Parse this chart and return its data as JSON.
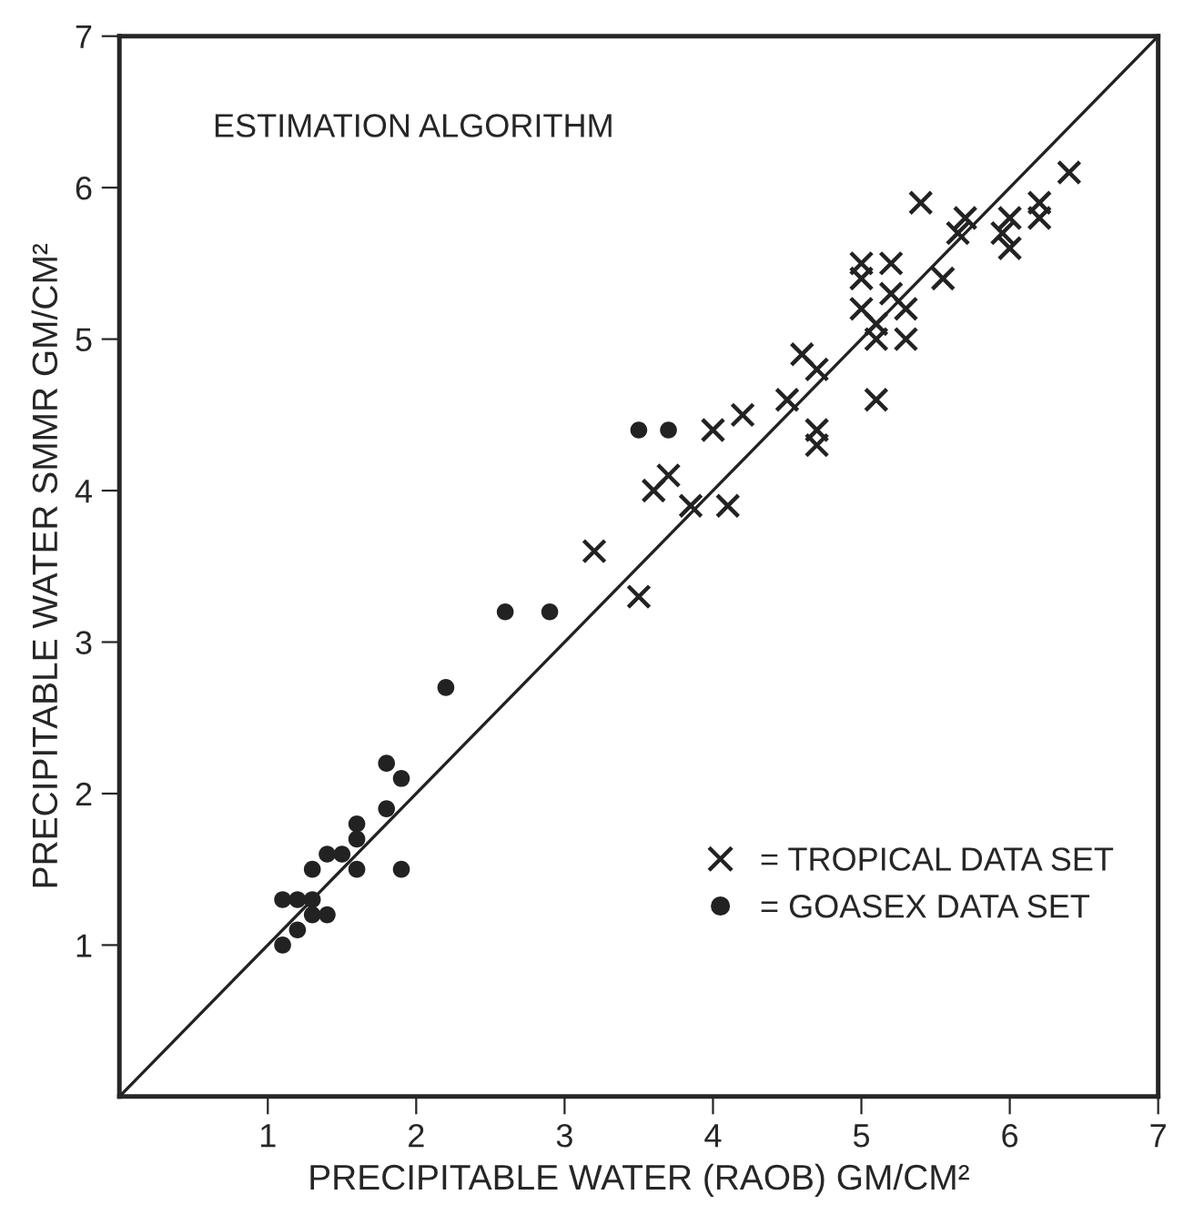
{
  "chart_data": {
    "type": "scatter",
    "xlabel": "PRECIPITABLE WATER (RAOB) GM/CM²",
    "ylabel": "PRECIPITABLE WATER SMMR GM/CM²",
    "annotations": [
      "ESTIMATION ALGORITHM"
    ],
    "xlim": [
      0,
      7
    ],
    "ylim": [
      0,
      7
    ],
    "xticks": [
      1,
      2,
      3,
      4,
      5,
      6,
      7
    ],
    "yticks": [
      1,
      2,
      3,
      4,
      5,
      6,
      7
    ],
    "grid": false,
    "legend": "bottom right",
    "series": [
      {
        "name": "= TROPICAL DATA SET",
        "marker": "cross",
        "color": "#222222",
        "x": [
          3.5,
          3.2,
          3.6,
          3.7,
          3.85,
          4.1,
          4.0,
          4.2,
          4.5,
          4.6,
          4.7,
          4.7,
          4.7,
          5.1,
          5.0,
          5.0,
          5.0,
          5.1,
          5.1,
          5.2,
          5.2,
          5.3,
          5.3,
          5.4,
          5.55,
          5.65,
          5.7,
          5.95,
          6.0,
          6.0,
          6.2,
          6.2,
          6.4
        ],
        "values": [
          3.3,
          3.6,
          4.0,
          4.1,
          3.9,
          3.9,
          4.4,
          4.5,
          4.6,
          4.9,
          4.8,
          4.4,
          4.3,
          4.6,
          5.5,
          5.4,
          5.2,
          5.1,
          5.0,
          5.5,
          5.3,
          5.2,
          5.0,
          5.9,
          5.4,
          5.7,
          5.8,
          5.7,
          5.6,
          5.8,
          5.8,
          5.9,
          6.1
        ]
      },
      {
        "name": "= GOASEX DATA SET",
        "marker": "circle",
        "color": "#222222",
        "x": [
          1.1,
          1.2,
          1.3,
          1.4,
          1.1,
          1.2,
          1.3,
          1.3,
          1.4,
          1.5,
          1.6,
          1.6,
          1.6,
          1.8,
          1.8,
          1.9,
          1.9,
          2.2,
          2.6,
          2.9,
          3.5,
          3.7
        ],
        "values": [
          1.0,
          1.1,
          1.2,
          1.2,
          1.3,
          1.3,
          1.3,
          1.5,
          1.6,
          1.6,
          1.5,
          1.7,
          1.8,
          1.9,
          2.2,
          2.1,
          1.5,
          2.7,
          3.2,
          3.2,
          4.4,
          4.4
        ]
      },
      {
        "type": "line",
        "color": "#222222",
        "line_style": "solid",
        "x": [
          0,
          7
        ],
        "values": [
          0,
          7
        ]
      }
    ]
  }
}
